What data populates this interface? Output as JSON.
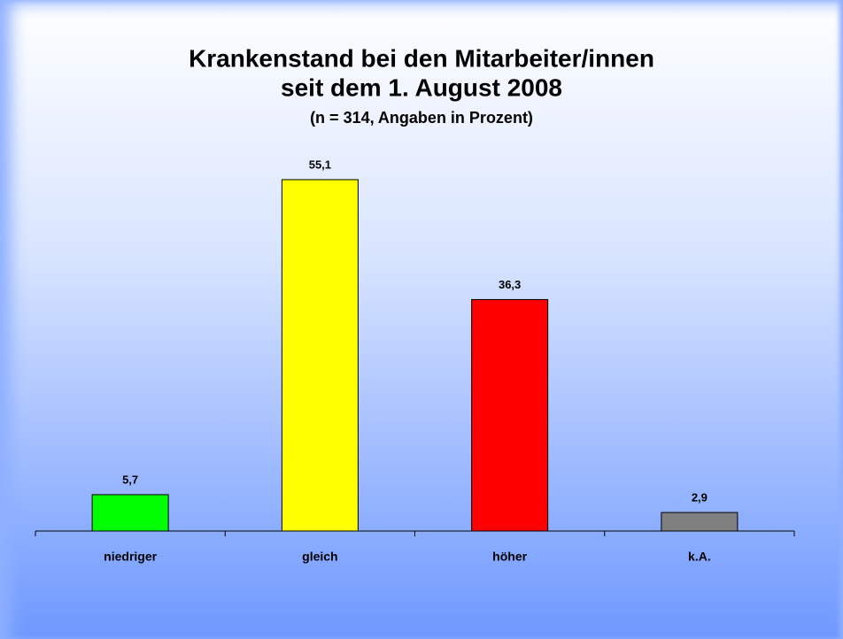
{
  "chart_data": {
    "type": "bar",
    "title": [
      "Krankenstand bei den Mitarbeiter/innen",
      "seit dem 1. August 2008"
    ],
    "subtitle": "(n = 314, Angaben in Prozent)",
    "categories": [
      "niedriger",
      "gleich",
      "höher",
      "k.A."
    ],
    "values": [
      5.7,
      55.1,
      36.3,
      2.9
    ],
    "value_labels": [
      "5,7",
      "55,1",
      "36,3",
      "2,9"
    ],
    "colors": [
      "#00ff00",
      "#ffff00",
      "#ff0000",
      "#808080"
    ]
  }
}
